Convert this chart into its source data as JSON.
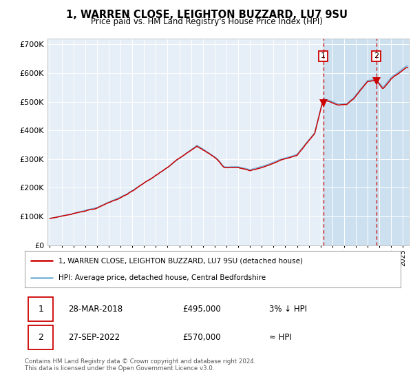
{
  "title": "1, WARREN CLOSE, LEIGHTON BUZZARD, LU7 9SU",
  "subtitle": "Price paid vs. HM Land Registry's House Price Index (HPI)",
  "legend_line1": "1, WARREN CLOSE, LEIGHTON BUZZARD, LU7 9SU (detached house)",
  "legend_line2": "HPI: Average price, detached house, Central Bedfordshire",
  "table_row1": [
    "1",
    "28-MAR-2018",
    "£495,000",
    "3% ↓ HPI"
  ],
  "table_row2": [
    "2",
    "27-SEP-2022",
    "£570,000",
    "≈ HPI"
  ],
  "footnote": "Contains HM Land Registry data © Crown copyright and database right 2024.\nThis data is licensed under the Open Government Licence v3.0.",
  "hpi_color": "#7ab4d8",
  "price_color": "#cc0000",
  "background_plot": "#e6eff7",
  "background_highlight": "#cce0f0",
  "vline_color": "#cc0000",
  "marker_color": "#cc0000",
  "sale1_year": 2018.23,
  "sale1_price": 495000,
  "sale2_year": 2022.74,
  "sale2_price": 570000,
  "ylim": [
    0,
    720000
  ],
  "xlim": [
    1994.8,
    2025.5
  ],
  "yticks": [
    0,
    100000,
    200000,
    300000,
    400000,
    500000,
    600000,
    700000
  ],
  "ytick_labels": [
    "£0",
    "£100K",
    "£200K",
    "£300K",
    "£400K",
    "£500K",
    "£600K",
    "£700K"
  ],
  "figsize": [
    6.0,
    5.6
  ],
  "dpi": 100
}
